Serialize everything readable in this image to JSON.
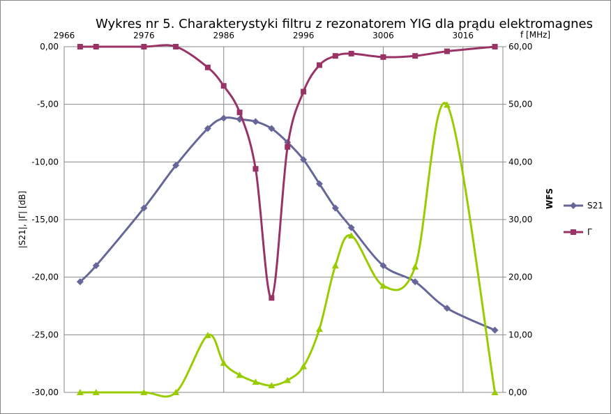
{
  "chart_data": {
    "type": "line",
    "title": "Wykres nr 5. Charakterystyki filtru  z rezonatorem YIG dla prądu elektromagnes",
    "x_label": "f [MHz]",
    "y_label": "|S21|, |Γ| [dB]",
    "y2_label": "WFS",
    "x": [
      2968,
      2970,
      2976,
      2980,
      2984,
      2986,
      2988,
      2990,
      2992,
      2994,
      2996,
      2998,
      3000,
      3002,
      3006,
      3010,
      3014,
      3020
    ],
    "xlim": [
      2966,
      3021
    ],
    "xticks": [
      2966,
      2976,
      2986,
      2996,
      3006,
      3016
    ],
    "ylim": [
      -30,
      0
    ],
    "yticks": [
      {
        "value": -30,
        "label": "-30,00"
      },
      {
        "value": -25,
        "label": "-25,00"
      },
      {
        "value": -20,
        "label": "-20,00"
      },
      {
        "value": -15,
        "label": "-15,00"
      },
      {
        "value": -10,
        "label": "-10,00"
      },
      {
        "value": -5,
        "label": "-5,00"
      },
      {
        "value": 0,
        "label": "0,00"
      }
    ],
    "y2lim": [
      0,
      60
    ],
    "y2ticks": [
      {
        "value": 0,
        "label": "0,00"
      },
      {
        "value": 10,
        "label": "10,00"
      },
      {
        "value": 20,
        "label": "20,00"
      },
      {
        "value": 30,
        "label": "30,00"
      },
      {
        "value": 40,
        "label": "40,00"
      },
      {
        "value": 50,
        "label": "50,00"
      },
      {
        "value": 60,
        "label": "60,00"
      }
    ],
    "grid": true,
    "series": [
      {
        "name": "S21",
        "color": "#666699",
        "marker": "diamond",
        "values": [
          -20.4,
          -19.0,
          -14.0,
          -10.3,
          -7.1,
          -6.2,
          -6.3,
          -6.5,
          -7.1,
          -8.3,
          -9.8,
          -11.9,
          -14.0,
          -15.7,
          -19.0,
          -20.4,
          -22.7,
          -24.6
        ]
      },
      {
        "name": "Γ",
        "color": "#993366",
        "marker": "square",
        "values": [
          0,
          0,
          0,
          0,
          -1.8,
          -3.4,
          -5.7,
          -10.6,
          -21.8,
          -8.7,
          -3.9,
          -1.6,
          -0.8,
          -0.6,
          -0.9,
          -0.8,
          -0.4,
          0
        ]
      },
      {
        "color": "#99cc00",
        "marker": "triangle",
        "axis": "y2",
        "values": [
          0,
          0,
          0,
          0,
          9.9,
          5.1,
          3.0,
          1.8,
          1.2,
          2.1,
          4.5,
          11.0,
          22.0,
          27.2,
          18.5,
          21.8,
          49.9,
          0
        ]
      }
    ]
  }
}
